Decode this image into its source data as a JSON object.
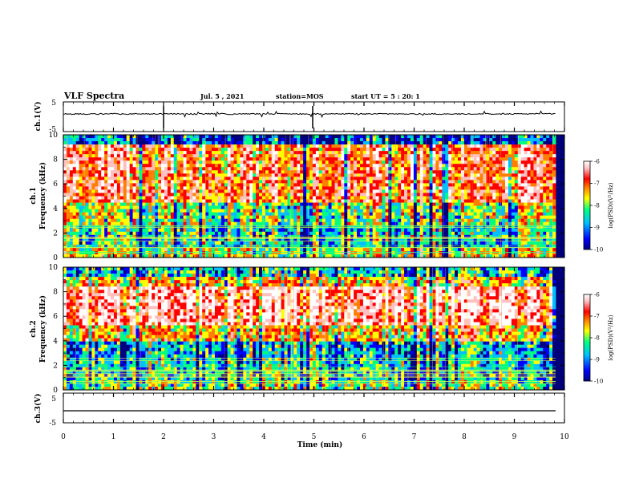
{
  "header": {
    "title": "VLF Spectra",
    "date": "Jul. 5 , 2021",
    "station": "station=MOS",
    "start": "start UT = 5 : 20: 1"
  },
  "chart_data": [
    {
      "type": "line",
      "name": "ch1-waveform",
      "ylabel": "ch.1(V)",
      "ylim": [
        -5,
        5
      ],
      "yticks": [
        "5",
        "-5"
      ]
    },
    {
      "type": "heatmap",
      "name": "ch1-spectrogram",
      "ylabel_line1": "ch.1",
      "ylabel_line2": "Frequency (kHz)",
      "ylim": [
        0,
        10
      ],
      "yticks": [
        "0",
        "2",
        "4",
        "6",
        "8",
        "10"
      ],
      "colorbar": {
        "label": "log(PSD)(V²/Hz)",
        "range": [
          -10,
          -6
        ],
        "ticks": [
          "-6",
          "-7",
          "-8",
          "-9",
          "-10"
        ],
        "colors": [
          "#000080",
          "#0000ff",
          "#00c0ff",
          "#00ff80",
          "#ffff00",
          "#ff8000",
          "#ff0000",
          "#ffc0c0",
          "#ffffff"
        ]
      }
    },
    {
      "type": "heatmap",
      "name": "ch2-spectrogram",
      "ylabel_line1": "ch.2",
      "ylabel_line2": "Frequency (kHz)",
      "ylim": [
        0,
        10
      ],
      "yticks": [
        "0",
        "2",
        "4",
        "6",
        "8",
        "10"
      ],
      "colorbar": {
        "label": "log(PSD)(V²/Hz)",
        "range": [
          -10,
          -6
        ],
        "ticks": [
          "-6",
          "-7",
          "-8",
          "-9",
          "-10"
        ],
        "colors": [
          "#000080",
          "#0000ff",
          "#00c0ff",
          "#00ff80",
          "#ffff00",
          "#ff8000",
          "#ff0000",
          "#ffc0c0",
          "#ffffff"
        ]
      }
    },
    {
      "type": "line",
      "name": "ch3-waveform",
      "ylabel": "ch.3(V)",
      "ylim": [
        -5,
        5
      ],
      "yticks": [
        "5",
        "-5"
      ]
    }
  ],
  "xaxis": {
    "label": "Time (min)",
    "range": [
      0,
      10
    ],
    "ticks": [
      "0",
      "1",
      "2",
      "3",
      "4",
      "5",
      "6",
      "7",
      "8",
      "9",
      "10"
    ]
  }
}
